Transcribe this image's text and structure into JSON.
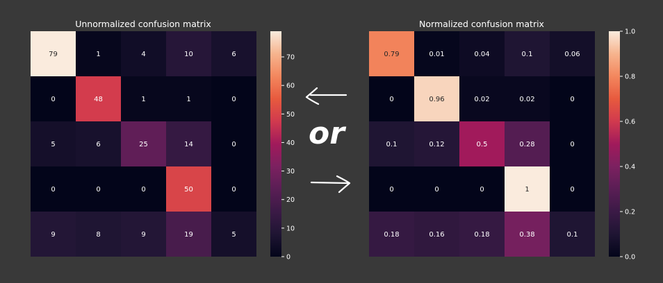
{
  "chart_data": [
    {
      "type": "heatmap",
      "title": "Unnormalized confusion matrix",
      "values": [
        [
          79,
          1,
          4,
          10,
          6
        ],
        [
          0,
          48,
          1,
          1,
          0
        ],
        [
          5,
          6,
          25,
          14,
          0
        ],
        [
          0,
          0,
          0,
          50,
          0
        ],
        [
          9,
          8,
          9,
          19,
          5
        ]
      ],
      "colorbar": {
        "range": [
          0,
          79
        ],
        "ticks": [
          0,
          10,
          20,
          30,
          40,
          50,
          60,
          70
        ],
        "tick_labels": [
          "0",
          "10",
          "20",
          "30",
          "40",
          "50",
          "60",
          "70"
        ]
      },
      "colormap": "rocket"
    },
    {
      "type": "heatmap",
      "title": "Normalized confusion matrix",
      "values": [
        [
          0.79,
          0.01,
          0.04,
          0.1,
          0.06
        ],
        [
          0,
          0.96,
          0.02,
          0.02,
          0
        ],
        [
          0.1,
          0.12,
          0.5,
          0.28,
          0
        ],
        [
          0,
          0,
          0,
          1,
          0
        ],
        [
          0.18,
          0.16,
          0.18,
          0.38,
          0.1
        ]
      ],
      "colorbar": {
        "range": [
          0,
          1
        ],
        "ticks": [
          0,
          0.2,
          0.4,
          0.6,
          0.8,
          1.0
        ],
        "tick_labels": [
          "0.0",
          "0.2",
          "0.4",
          "0.6",
          "0.8",
          "1.0"
        ]
      },
      "colormap": "rocket"
    }
  ],
  "annotations": {
    "between_text": "or"
  },
  "colors": {
    "background": "#393939",
    "text": "#ffffff"
  }
}
